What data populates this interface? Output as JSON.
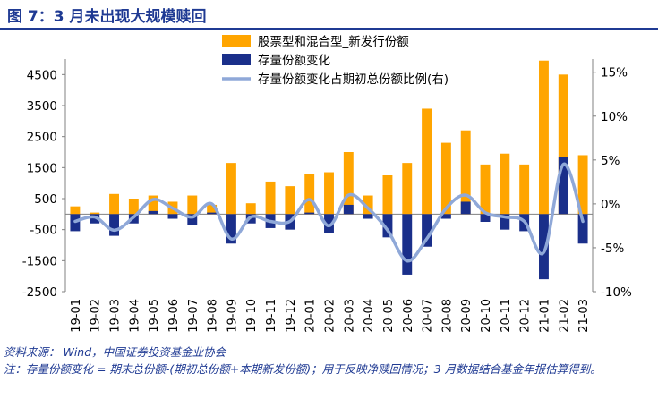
{
  "header": {
    "title": "图 7：3 月未出现大规模赎回"
  },
  "notes": {
    "source": "资料来源： Wind，中国证券投资基金业协会",
    "note": "注：存量份额变化 = 期末总份额-(期初总份额+本期新发份额)；用于反映净赎回情况；3 月数据结合基金年报估算得到。"
  },
  "colors": {
    "issuance": "#FFA500",
    "stock_change": "#1A2F8A",
    "ratio_line": "#8FA8D8"
  },
  "chart_data": {
    "type": "bar",
    "categories": [
      "19-01",
      "19-02",
      "19-03",
      "19-04",
      "19-05",
      "19-06",
      "19-07",
      "19-08",
      "19-09",
      "19-10",
      "19-11",
      "19-12",
      "20-01",
      "20-02",
      "20-03",
      "20-04",
      "20-05",
      "20-06",
      "20-07",
      "20-08",
      "20-09",
      "20-10",
      "20-11",
      "20-12",
      "21-01",
      "21-02",
      "21-03"
    ],
    "series": [
      {
        "name": "股票型和混合型_新发行份额",
        "kind": "bar",
        "axis": "left",
        "values": [
          250,
          50,
          650,
          500,
          600,
          400,
          600,
          300,
          1650,
          350,
          1050,
          900,
          1300,
          1350,
          2000,
          600,
          1250,
          1650,
          3400,
          2300,
          2700,
          1600,
          1950,
          1600,
          4950,
          4500,
          1900
        ]
      },
      {
        "name": "存量份额变化",
        "kind": "bar",
        "axis": "left",
        "values": [
          -550,
          -300,
          -700,
          -300,
          100,
          -150,
          -350,
          50,
          -950,
          -300,
          -450,
          -500,
          50,
          -600,
          300,
          -150,
          -750,
          -1950,
          -1050,
          -150,
          400,
          -250,
          -500,
          -550,
          -2100,
          1850,
          -950
        ]
      },
      {
        "name": "存量份额变化占期初总份额比例(右)",
        "kind": "line",
        "axis": "right",
        "values": [
          -2.0,
          -1.5,
          -3.0,
          -1.5,
          0.5,
          -0.5,
          -1.5,
          0.0,
          -4.0,
          -1.5,
          -2.0,
          -2.0,
          0.5,
          -2.5,
          1.0,
          -0.5,
          -3.0,
          -6.5,
          -4.0,
          -0.5,
          1.0,
          -1.0,
          -1.5,
          -2.0,
          -5.5,
          4.5,
          -2.0
        ]
      }
    ],
    "y_left": {
      "min": -2500,
      "max": 5000,
      "ticks": [
        -2500,
        -1500,
        -500,
        500,
        1500,
        2500,
        3500,
        4500
      ]
    },
    "y_right": {
      "min": -10,
      "max": 16.5,
      "ticks": [
        "-10%",
        "-5%",
        "0%",
        "5%",
        "10%",
        "15%"
      ],
      "tick_values": [
        -10,
        -5,
        0,
        5,
        10,
        15
      ]
    },
    "legend_position": "top-center"
  }
}
